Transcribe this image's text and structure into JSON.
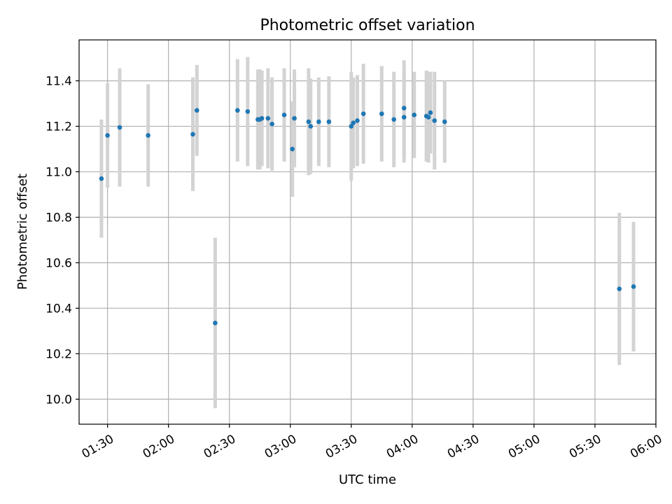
{
  "chart_data": {
    "type": "scatter",
    "title": "Photometric offset variation",
    "xlabel": "UTC time",
    "ylabel": "Photometric offset",
    "xlim": [
      "01:16",
      "06:00"
    ],
    "ylim": [
      9.89,
      11.58
    ],
    "grid": true,
    "x_ticks": [
      "01:30",
      "02:00",
      "02:30",
      "03:00",
      "03:30",
      "04:00",
      "04:30",
      "05:00",
      "05:30",
      "06:00"
    ],
    "y_ticks": [
      10.0,
      10.2,
      10.4,
      10.6,
      10.8,
      11.0,
      11.2,
      11.4
    ],
    "point_color": "#1f77b4",
    "errorbar_color": "#d3d3d3",
    "series": [
      {
        "points": [
          {
            "x": "01:27",
            "y": 10.97,
            "err": 0.26
          },
          {
            "x": "01:30",
            "y": 11.16,
            "err": 0.23
          },
          {
            "x": "01:36",
            "y": 11.195,
            "err": 0.26
          },
          {
            "x": "01:50",
            "y": 11.16,
            "err": 0.225
          },
          {
            "x": "02:12",
            "y": 11.165,
            "err": 0.25
          },
          {
            "x": "02:14",
            "y": 11.27,
            "err": 0.2
          },
          {
            "x": "02:23",
            "y": 10.335,
            "err": 0.375
          },
          {
            "x": "02:34",
            "y": 11.27,
            "err": 0.225
          },
          {
            "x": "02:39",
            "y": 11.265,
            "err": 0.24
          },
          {
            "x": "02:44",
            "y": 11.23,
            "err": 0.22
          },
          {
            "x": "02:45",
            "y": 11.23,
            "err": 0.22
          },
          {
            "x": "02:46",
            "y": 11.235,
            "err": 0.21
          },
          {
            "x": "02:49",
            "y": 11.235,
            "err": 0.22
          },
          {
            "x": "02:51",
            "y": 11.21,
            "err": 0.205
          },
          {
            "x": "02:57",
            "y": 11.25,
            "err": 0.205
          },
          {
            "x": "03:01",
            "y": 11.1,
            "err": 0.21
          },
          {
            "x": "03:02",
            "y": 11.235,
            "err": 0.215
          },
          {
            "x": "03:09",
            "y": 11.22,
            "err": 0.235
          },
          {
            "x": "03:10",
            "y": 11.2,
            "err": 0.21
          },
          {
            "x": "03:14",
            "y": 11.22,
            "err": 0.195
          },
          {
            "x": "03:19",
            "y": 11.22,
            "err": 0.2
          },
          {
            "x": "03:30",
            "y": 11.2,
            "err": 0.24
          },
          {
            "x": "03:31",
            "y": 11.215,
            "err": 0.2
          },
          {
            "x": "03:33",
            "y": 11.225,
            "err": 0.2
          },
          {
            "x": "03:36",
            "y": 11.255,
            "err": 0.22
          },
          {
            "x": "03:45",
            "y": 11.255,
            "err": 0.21
          },
          {
            "x": "03:51",
            "y": 11.23,
            "err": 0.21
          },
          {
            "x": "03:56",
            "y": 11.28,
            "err": 0.21
          },
          {
            "x": "03:56",
            "y": 11.24,
            "err": 0.2
          },
          {
            "x": "04:01",
            "y": 11.25,
            "err": 0.19
          },
          {
            "x": "04:07",
            "y": 11.245,
            "err": 0.2
          },
          {
            "x": "04:08",
            "y": 11.24,
            "err": 0.2
          },
          {
            "x": "04:09",
            "y": 11.26,
            "err": 0.18
          },
          {
            "x": "04:11",
            "y": 11.225,
            "err": 0.215
          },
          {
            "x": "04:16",
            "y": 11.22,
            "err": 0.18
          },
          {
            "x": "05:42",
            "y": 10.485,
            "err": 0.335
          },
          {
            "x": "05:49",
            "y": 10.495,
            "err": 0.285
          }
        ]
      }
    ]
  }
}
